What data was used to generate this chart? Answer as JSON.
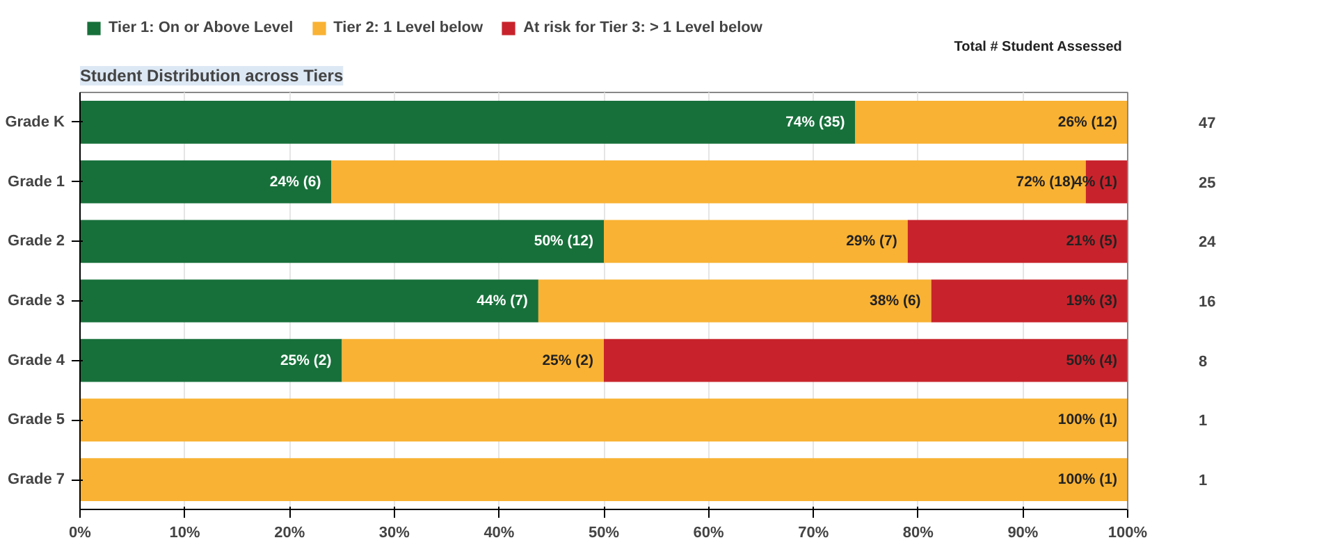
{
  "chart_data": {
    "type": "bar",
    "orientation": "horizontal",
    "stacked": true,
    "title": "Student Distribution across Tiers",
    "categories": [
      "Grade K",
      "Grade 1",
      "Grade 2",
      "Grade 3",
      "Grade 4",
      "Grade 5",
      "Grade 7"
    ],
    "series": [
      {
        "name": "Tier 1: On or Above Level",
        "color": "#17703a",
        "values": [
          74,
          24,
          50,
          43.75,
          25,
          0,
          0
        ],
        "value_labels": [
          "74% (35)",
          "24% (6)",
          "50% (12)",
          "44% (7)",
          "25% (2)",
          null,
          null
        ]
      },
      {
        "name": "Tier 2: 1 Level below",
        "color": "#f9b233",
        "values": [
          26,
          72,
          29,
          37.5,
          25,
          100,
          100
        ],
        "value_labels": [
          "26% (12)",
          "72% (18)",
          "29% (7)",
          "38% (6)",
          "25% (2)",
          "100% (1)",
          "100% (1)"
        ]
      },
      {
        "name": "At risk for Tier 3: > 1 Level below",
        "color": "#c8232c",
        "values": [
          0,
          4,
          21,
          18.75,
          50,
          0,
          0
        ],
        "value_labels": [
          null,
          "4% (1)",
          "21% (5)",
          "19% (3)",
          "50% (4)",
          null,
          null
        ]
      }
    ],
    "y2_categories": [
      "47",
      "25",
      "24",
      "16",
      "8",
      "1",
      "1"
    ],
    "y2label": "Total # Student Assessed",
    "xlim": [
      0,
      100
    ],
    "xticks": [
      {
        "value": 0,
        "label": "0%"
      },
      {
        "value": 10,
        "label": "10%"
      },
      {
        "value": 20,
        "label": "20%"
      },
      {
        "value": 30,
        "label": "30%"
      },
      {
        "value": 40,
        "label": "40%"
      },
      {
        "value": 50,
        "label": "50%"
      },
      {
        "value": 60,
        "label": "60%"
      },
      {
        "value": 70,
        "label": "70%"
      },
      {
        "value": 80,
        "label": "80%"
      },
      {
        "value": 90,
        "label": "90%"
      },
      {
        "value": 100,
        "label": "100%"
      }
    ],
    "grid": "x",
    "legend": "top left"
  }
}
